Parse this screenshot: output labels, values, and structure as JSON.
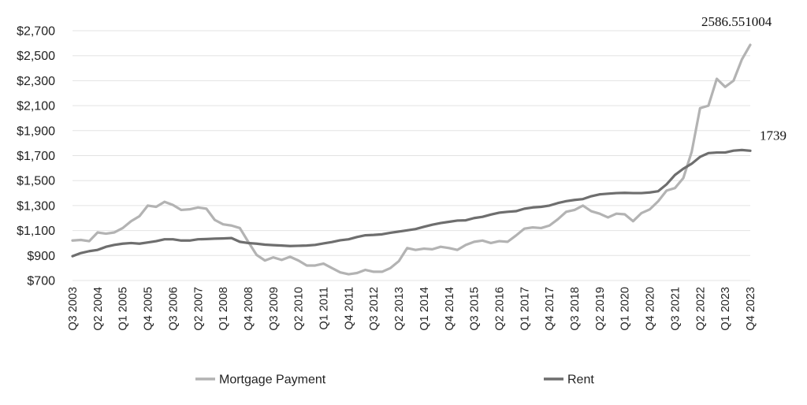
{
  "chart_data": {
    "type": "line",
    "title": "",
    "xlabel": "",
    "ylabel": "",
    "ylim": [
      700,
      2700
    ],
    "y_ticks": [
      "$700",
      "$900",
      "$1,100",
      "$1,300",
      "$1,500",
      "$1,700",
      "$1,900",
      "$2,100",
      "$2,300",
      "$2,500",
      "$2,700"
    ],
    "y_tick_values": [
      700,
      900,
      1100,
      1300,
      1500,
      1700,
      1900,
      2100,
      2300,
      2500,
      2700
    ],
    "grid": true,
    "legend_position": "bottom",
    "x_start": "Q3 2003",
    "x_tick_labels": [
      "Q3 2003",
      "Q2 2004",
      "Q1 2005",
      "Q4 2005",
      "Q3 2006",
      "Q2 2007",
      "Q1 2008",
      "Q4 2008",
      "Q3 2009",
      "Q2 2010",
      "Q1 2011",
      "Q4 2011",
      "Q3 2012",
      "Q2 2013",
      "Q1 2014",
      "Q4 2014",
      "Q3 2015",
      "Q2 2016",
      "Q1 2017",
      "Q4 2017",
      "Q3 2018",
      "Q2 2019",
      "Q1 2020",
      "Q4 2020",
      "Q3 2021",
      "Q2 2022",
      "Q1 2023",
      "Q4 2023"
    ],
    "series": [
      {
        "name": "Mortgage Payment",
        "color": "#b3b3b3",
        "end_label": "2586.551004",
        "values": [
          1020,
          1025,
          1015,
          1085,
          1075,
          1085,
          1120,
          1175,
          1215,
          1300,
          1290,
          1330,
          1305,
          1265,
          1270,
          1285,
          1275,
          1185,
          1150,
          1140,
          1120,
          1010,
          905,
          860,
          885,
          865,
          890,
          860,
          820,
          820,
          835,
          800,
          765,
          750,
          760,
          785,
          770,
          770,
          800,
          855,
          960,
          945,
          955,
          950,
          970,
          960,
          945,
          985,
          1010,
          1020,
          1000,
          1015,
          1010,
          1060,
          1115,
          1125,
          1120,
          1140,
          1190,
          1250,
          1265,
          1300,
          1255,
          1235,
          1205,
          1235,
          1230,
          1175,
          1240,
          1270,
          1335,
          1420,
          1440,
          1520,
          1730,
          2080,
          2100,
          2315,
          2250,
          2300,
          2470,
          2586.551004
        ]
      },
      {
        "name": "Rent",
        "color": "#6e6e6e",
        "end_label": "1739",
        "values": [
          895,
          920,
          935,
          945,
          970,
          985,
          995,
          1000,
          995,
          1005,
          1015,
          1030,
          1030,
          1020,
          1020,
          1030,
          1032,
          1035,
          1037,
          1040,
          1010,
          1000,
          995,
          987,
          983,
          980,
          976,
          978,
          980,
          985,
          997,
          1008,
          1022,
          1030,
          1048,
          1062,
          1065,
          1070,
          1082,
          1092,
          1102,
          1112,
          1130,
          1147,
          1160,
          1170,
          1180,
          1182,
          1200,
          1210,
          1228,
          1243,
          1250,
          1255,
          1275,
          1285,
          1290,
          1300,
          1320,
          1335,
          1345,
          1352,
          1375,
          1390,
          1395,
          1400,
          1402,
          1400,
          1400,
          1405,
          1415,
          1470,
          1545,
          1595,
          1635,
          1690,
          1720,
          1725,
          1725,
          1740,
          1745,
          1739
        ]
      }
    ]
  }
}
